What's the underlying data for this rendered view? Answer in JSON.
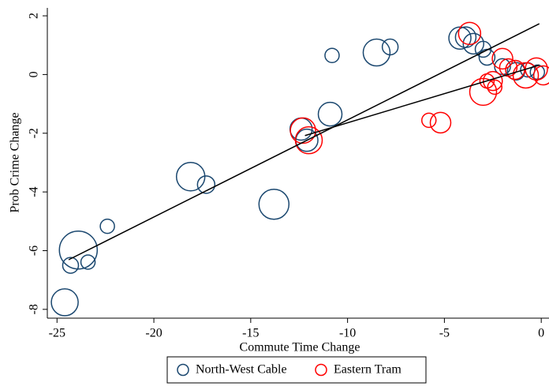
{
  "chart_data": {
    "type": "scatter",
    "x_label": "Commute Time Change",
    "y_label": "Prob Crime Change",
    "xlim": [
      -25.5,
      0.4
    ],
    "ylim": [
      -8.3,
      2.27
    ],
    "xticks": [
      -25,
      -20,
      -15,
      -10,
      -5,
      0
    ],
    "yticks": [
      2,
      0,
      -2,
      -4,
      -6,
      -8
    ],
    "series": [
      {
        "name": "North-West Cable",
        "color": "#1a476f",
        "x": [
          -24.6,
          -24.3,
          -23.9,
          -23.4,
          -22.4,
          -18.1,
          -17.3,
          -13.8,
          -12.4,
          -12.1,
          -10.9,
          -10.8,
          -8.5,
          -7.8,
          -4.2,
          -3.9,
          -3.5,
          -3.0,
          -2.8,
          -2.0,
          -1.3,
          -0.7,
          -0.2
        ],
        "values": [
          -7.76,
          -6.5,
          -5.98,
          -6.39,
          -5.17,
          -3.48,
          -3.75,
          -4.42,
          -1.86,
          -2.24,
          -1.35,
          0.65,
          0.75,
          0.94,
          1.24,
          1.27,
          1.05,
          0.86,
          0.59,
          0.27,
          0.11,
          0.16,
          0.08
        ],
        "sizes": [
          17,
          10,
          24,
          9,
          9,
          18,
          11,
          19,
          14,
          14,
          15,
          9,
          17,
          10,
          14,
          13,
          13,
          10,
          10,
          10,
          11,
          9,
          9
        ]
      },
      {
        "name": "Eastern Tram",
        "color": "#ff0000",
        "x": [
          -5.8,
          -5.2,
          -3.7,
          -3.0,
          -2.5,
          -2.4,
          -2.8,
          -2.0,
          -1.7,
          -1.35,
          -0.8,
          -0.25,
          0.1,
          -12.3,
          -12.0
        ],
        "values": [
          -1.56,
          -1.64,
          1.4,
          -0.59,
          -0.22,
          -0.43,
          -0.22,
          0.54,
          0.24,
          0.16,
          -0.03,
          0.19,
          -0.03,
          -1.91,
          -2.24
        ],
        "sizes": [
          9,
          13,
          14,
          17,
          12,
          9,
          9,
          13,
          11,
          12,
          16,
          14,
          12,
          16,
          17
        ]
      }
    ],
    "fit_lines": [
      {
        "color": "#000000",
        "x": [
          -24.4,
          -0.1
        ],
        "y": [
          -6.31,
          1.73
        ]
      },
      {
        "color": "#000000",
        "x": [
          -12.2,
          -0.1
        ],
        "y": [
          -2.08,
          0.32
        ]
      }
    ]
  }
}
